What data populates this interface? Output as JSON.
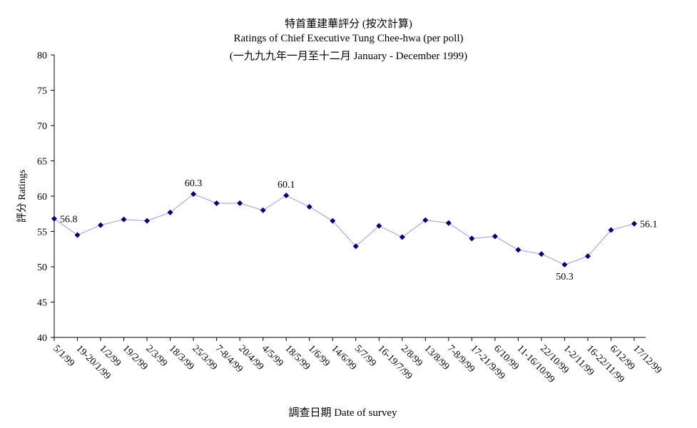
{
  "chart_data": {
    "type": "line",
    "title": "特首董建華評分 (按次計算)",
    "subtitle": "Ratings of Chief Executive Tung Chee-hwa (per poll)",
    "subtitle2": "(一九九九年一月至十二月 January - December 1999)",
    "xlabel": "調查日期 Date of survey",
    "ylabel": "評分 Ratings",
    "ylim": [
      40,
      80
    ],
    "yticks": [
      40,
      45,
      50,
      55,
      60,
      65,
      70,
      75,
      80
    ],
    "grid": false,
    "categories": [
      "5/1/99",
      "19-20/1/99",
      "1/2/99",
      "19/2/99",
      "2/3/99",
      "18/3/99",
      "25/3/99",
      "7-8/4/99",
      "20/4/99",
      "4/5/99",
      "18/5/99",
      "1/6/99",
      "14/6/99",
      "5/7/99",
      "16-19/7/99",
      "2/8/99",
      "13/8/99",
      "7-8/9/99",
      "17-21/9/99",
      "6/10/99",
      "11-16/10/99",
      "22/10/99",
      "1-2/11/99",
      "16-22/11/99",
      "6/12/99",
      "17/12/99"
    ],
    "values": [
      56.8,
      54.5,
      55.9,
      56.7,
      56.5,
      57.7,
      60.3,
      59.0,
      59.0,
      58.0,
      60.1,
      58.5,
      56.5,
      52.9,
      55.8,
      54.2,
      56.6,
      56.2,
      54.0,
      54.3,
      52.4,
      51.8,
      50.3,
      51.5,
      55.2,
      56.1
    ],
    "data_labels": [
      {
        "index": 0,
        "text": "56.8",
        "position": "right"
      },
      {
        "index": 6,
        "text": "60.3",
        "position": "above"
      },
      {
        "index": 10,
        "text": "60.1",
        "position": "above"
      },
      {
        "index": 22,
        "text": "50.3",
        "position": "below"
      },
      {
        "index": 25,
        "text": "56.1",
        "position": "right"
      }
    ],
    "line_color": "#9999ff",
    "marker_color": "#000080"
  }
}
